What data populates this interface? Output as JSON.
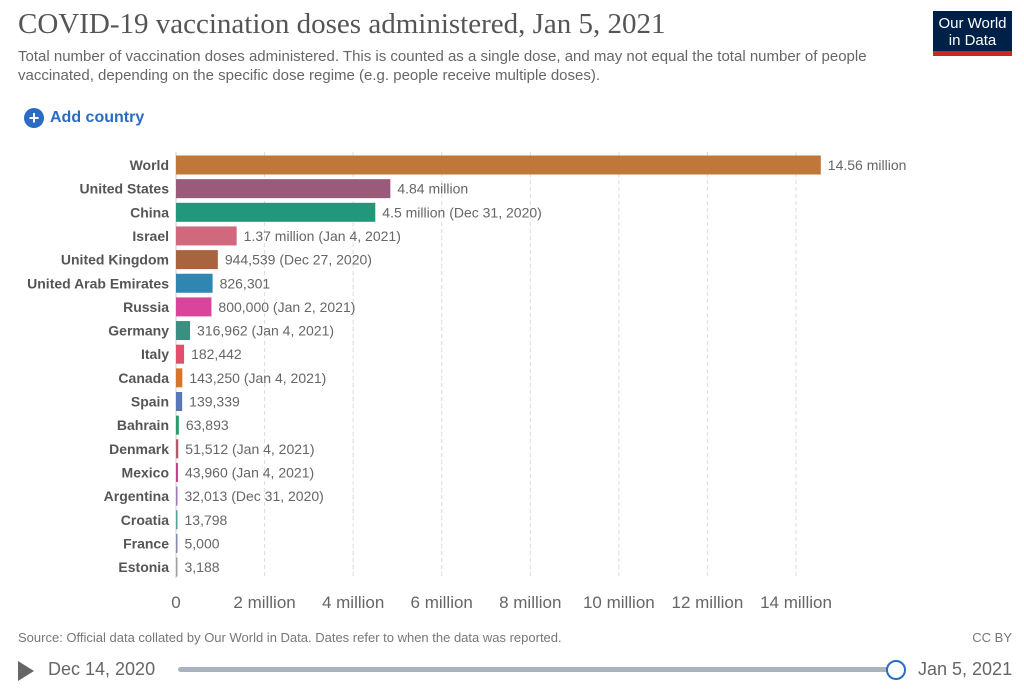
{
  "header": {
    "title": "COVID-19 vaccination doses administered, Jan 5, 2021",
    "subtitle": "Total number of vaccination doses administered. This is counted as a single dose, and may not equal the total number of people vaccinated, depending on the specific dose regime (e.g. people receive multiple doses).",
    "logo": "Our World in Data"
  },
  "add_country": "Add country",
  "footer": {
    "source": "Source: Official data collated by Our World in Data. Dates refer to when the data was reported.",
    "license": "CC BY"
  },
  "timeline": {
    "start": "Dec 14, 2020",
    "end": "Jan 5, 2021",
    "position": 1.0
  },
  "chart_data": {
    "type": "bar",
    "orientation": "horizontal",
    "xlim": [
      0,
      15000000
    ],
    "grid": true,
    "ticks": [
      {
        "v": 0,
        "label": "0"
      },
      {
        "v": 2000000,
        "label": "2 million"
      },
      {
        "v": 4000000,
        "label": "4 million"
      },
      {
        "v": 6000000,
        "label": "6 million"
      },
      {
        "v": 8000000,
        "label": "8 million"
      },
      {
        "v": 10000000,
        "label": "10 million"
      },
      {
        "v": 12000000,
        "label": "12 million"
      },
      {
        "v": 14000000,
        "label": "14 million"
      }
    ],
    "bars": [
      {
        "category": "World",
        "value": 14560000,
        "label": "14.56 million",
        "color": "#c0773a"
      },
      {
        "category": "United States",
        "value": 4840000,
        "label": "4.84 million",
        "color": "#9a5a7a"
      },
      {
        "category": "China",
        "value": 4500000,
        "label": "4.5 million (Dec 31, 2020)",
        "color": "#23977a"
      },
      {
        "category": "Israel",
        "value": 1370000,
        "label": "1.37 million (Jan 4, 2021)",
        "color": "#d0697e"
      },
      {
        "category": "United Kingdom",
        "value": 944539,
        "label": "944,539 (Dec 27, 2020)",
        "color": "#a8633f"
      },
      {
        "category": "United Arab Emirates",
        "value": 826301,
        "label": "826,301",
        "color": "#2f86b0"
      },
      {
        "category": "Russia",
        "value": 800000,
        "label": "800,000 (Jan 2, 2021)",
        "color": "#d9459c"
      },
      {
        "category": "Germany",
        "value": 316962,
        "label": "316,962 (Jan 4, 2021)",
        "color": "#3a8f80"
      },
      {
        "category": "Italy",
        "value": 182442,
        "label": "182,442",
        "color": "#e0506a"
      },
      {
        "category": "Canada",
        "value": 143250,
        "label": "143,250 (Jan 4, 2021)",
        "color": "#d6762e"
      },
      {
        "category": "Spain",
        "value": 139339,
        "label": "139,339",
        "color": "#5a77b8"
      },
      {
        "category": "Bahrain",
        "value": 63893,
        "label": "63,893",
        "color": "#2a9a6a"
      },
      {
        "category": "Denmark",
        "value": 51512,
        "label": "51,512 (Jan 4, 2021)",
        "color": "#b05a6a"
      },
      {
        "category": "Mexico",
        "value": 43960,
        "label": "43,960 (Jan 4, 2021)",
        "color": "#d03a8a"
      },
      {
        "category": "Argentina",
        "value": 32013,
        "label": "32,013 (Dec 31, 2020)",
        "color": "#9a7ab8"
      },
      {
        "category": "Croatia",
        "value": 13798,
        "label": "13,798",
        "color": "#5aa09a"
      },
      {
        "category": "France",
        "value": 5000,
        "label": "5,000",
        "color": "#8a8aaa"
      },
      {
        "category": "Estonia",
        "value": 3188,
        "label": "3,188",
        "color": "#a0a0a0"
      }
    ]
  }
}
